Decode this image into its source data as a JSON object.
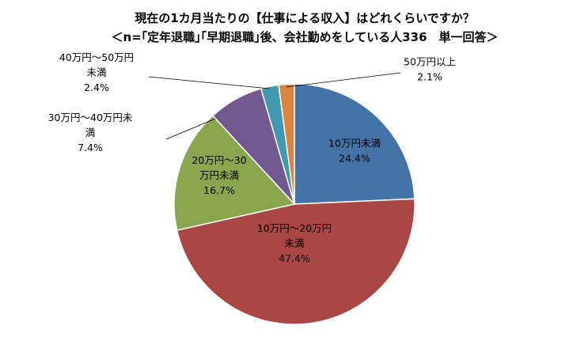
{
  "chart_data": {
    "type": "pie",
    "title": "現在の1カ月当たりの【仕事による収入】はどれくらいですか？",
    "subtitle": "＜n=｢定年退職｣｢早期退職｣後、会社勤めをしている人336　単一回答＞",
    "slices": [
      {
        "label_lines": [
          "10万円未満"
        ],
        "value_label": "24.4%",
        "value": 24.4,
        "color": "#4572A7"
      },
      {
        "label_lines": [
          "10万円～20万円",
          "未満"
        ],
        "value_label": "47.4%",
        "value": 47.4,
        "color": "#AA4643"
      },
      {
        "label_lines": [
          "20万円～30",
          "万円未満"
        ],
        "value_label": "16.7%",
        "value": 16.7,
        "color": "#89A54E"
      },
      {
        "label_lines": [
          "30万円～40万円未",
          "満"
        ],
        "value_label": "7.4%",
        "value": 7.4,
        "color": "#71588F"
      },
      {
        "label_lines": [
          "40万円～50万円",
          "未満"
        ],
        "value_label": "2.4%",
        "value": 2.4,
        "color": "#4198AF"
      },
      {
        "label_lines": [
          "50万円以上"
        ],
        "value_label": "2.1%",
        "value": 2.1,
        "color": "#DB843D"
      }
    ]
  }
}
